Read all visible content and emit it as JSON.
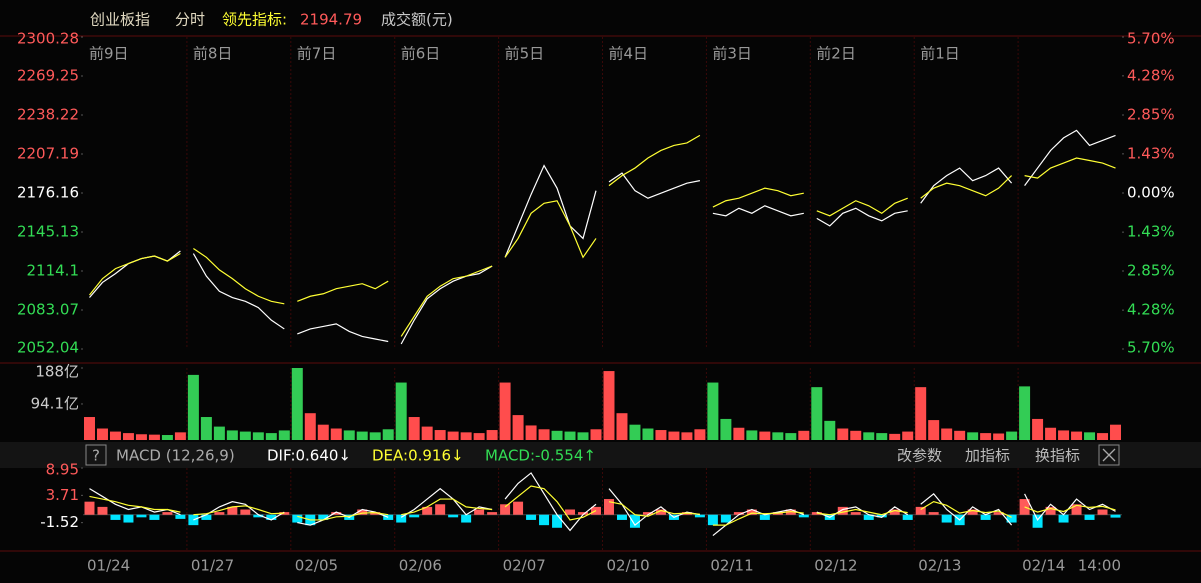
{
  "header": {
    "name": "创业板指",
    "mode": "分时",
    "indicator_label": "领先指标:",
    "indicator_value": 2194.79,
    "volume_label": "成交额(元)"
  },
  "macd_header": {
    "help": "?",
    "name": "MACD (12,26,9)",
    "dif": "DIF:0.640↓",
    "dea": "DEA:0.916↓",
    "macd": "MACD:-0.554↑",
    "buttons": [
      "改参数",
      "加指标",
      "换指标"
    ]
  },
  "chart_data": [
    {
      "type": "line",
      "categories": [
        "前9日",
        "前8日",
        "前7日",
        "前6日",
        "前5日",
        "前4日",
        "前3日",
        "前2日",
        "前1日",
        null
      ],
      "series": [
        {
          "color": "#ffffff",
          "values": [
            [
              2093,
              2105,
              2112,
              2120,
              2124,
              2126,
              2122,
              2130
            ],
            [
              2128,
              2110,
              2098,
              2093,
              2090,
              2085,
              2075,
              2068
            ],
            [
              2064,
              2068,
              2070,
              2072,
              2066,
              2062,
              2060,
              2058
            ],
            [
              2056,
              2075,
              2092,
              2100,
              2106,
              2110,
              2112,
              2118
            ],
            [
              2125,
              2150,
              2175,
              2198,
              2180,
              2150,
              2140,
              2178
            ],
            [
              2185,
              2192,
              2178,
              2172,
              2176,
              2180,
              2184,
              2186
            ],
            [
              2160,
              2158,
              2164,
              2160,
              2166,
              2162,
              2158,
              2160
            ],
            [
              2156,
              2150,
              2160,
              2164,
              2158,
              2154,
              2160,
              2162
            ],
            [
              2168,
              2182,
              2190,
              2196,
              2186,
              2190,
              2196,
              2184
            ],
            [
              2182,
              2196,
              2210,
              2220,
              2226,
              2214,
              2218,
              2222
            ]
          ]
        },
        {
          "color": "#ffff33",
          "values": [
            [
              2095,
              2108,
              2116,
              2120,
              2124,
              2126,
              2122,
              2128
            ],
            [
              2132,
              2125,
              2115,
              2108,
              2100,
              2094,
              2090,
              2088
            ],
            [
              2090,
              2094,
              2096,
              2100,
              2102,
              2104,
              2100,
              2106
            ],
            [
              2062,
              2078,
              2094,
              2102,
              2108,
              2110,
              2114,
              2118
            ],
            [
              2125,
              2140,
              2160,
              2168,
              2170,
              2150,
              2125,
              2140
            ],
            [
              2182,
              2190,
              2196,
              2204,
              2210,
              2214,
              2216,
              2222
            ],
            [
              2165,
              2170,
              2172,
              2176,
              2180,
              2178,
              2174,
              2176
            ],
            [
              2162,
              2158,
              2164,
              2170,
              2166,
              2160,
              2168,
              2172
            ],
            [
              2172,
              2180,
              2184,
              2182,
              2178,
              2174,
              2180,
              2190
            ],
            [
              2190,
              2188,
              2196,
              2200,
              2204,
              2202,
              2200,
              2196
            ]
          ]
        }
      ],
      "ylim": [
        2052.04,
        2300.28
      ],
      "yticks": [
        2300.28,
        2269.25,
        2238.22,
        2207.19,
        2176.16,
        2145.13,
        2114.1,
        2083.07,
        2052.04
      ],
      "y2lim": [
        -5.7,
        5.7
      ],
      "y2ticks": [
        {
          "value": 5.7,
          "label": "5.70%"
        },
        {
          "value": 4.28,
          "label": "4.28%"
        },
        {
          "value": 2.85,
          "label": "2.85%"
        },
        {
          "value": 1.43,
          "label": "1.43%"
        },
        {
          "value": 0,
          "label": "0.00%"
        },
        {
          "value": -1.43,
          "label": "1.43%"
        },
        {
          "value": -2.85,
          "label": "2.85%"
        },
        {
          "value": -4.28,
          "label": "4.28%"
        },
        {
          "value": -5.7,
          "label": "5.70%"
        }
      ]
    },
    {
      "type": "bar",
      "up_color": "#ff4d4d",
      "down_color": "#33cc55",
      "values": [
        [
          60,
          30,
          22,
          18,
          15,
          14,
          13,
          20
        ],
        [
          170,
          60,
          35,
          25,
          22,
          20,
          18,
          25
        ],
        [
          188,
          70,
          40,
          30,
          25,
          22,
          20,
          28
        ],
        [
          150,
          60,
          35,
          26,
          22,
          20,
          18,
          26
        ],
        [
          150,
          65,
          38,
          28,
          24,
          22,
          20,
          28
        ],
        [
          180,
          70,
          40,
          30,
          26,
          22,
          20,
          28
        ],
        [
          150,
          55,
          32,
          25,
          22,
          20,
          18,
          24
        ],
        [
          138,
          50,
          30,
          24,
          20,
          18,
          16,
          22
        ],
        [
          138,
          52,
          30,
          24,
          20,
          18,
          17,
          22
        ],
        [
          140,
          55,
          32,
          25,
          22,
          20,
          18,
          40
        ]
      ],
      "ylim": [
        0,
        188
      ],
      "yticks": [
        {
          "value": 188,
          "label": "188亿"
        },
        {
          "value": 94.1,
          "label": "94.1亿"
        }
      ]
    },
    {
      "type": "macd",
      "categories": [
        "01/24",
        "01/27",
        "02/05",
        "02/06",
        "02/07",
        "02/10",
        "02/11",
        "02/12",
        "02/13",
        "02/14"
      ],
      "end_label": "14:00",
      "up_color": "#ff5a5a",
      "down_color": "#00e5ff",
      "histogram": [
        [
          2.5,
          1.5,
          -1,
          -1.5,
          -0.5,
          -1,
          0.5,
          -0.8
        ],
        [
          -2,
          -1,
          0.5,
          1.5,
          1,
          -0.5,
          -1,
          0.5
        ],
        [
          -1.5,
          -2,
          -1,
          0.5,
          -1,
          1,
          0.5,
          -1
        ],
        [
          -1.5,
          -0.5,
          1.5,
          2,
          -0.5,
          -1.5,
          1,
          0.5
        ],
        [
          2,
          2.5,
          -1,
          -2,
          -2.5,
          1,
          0.5,
          1.5
        ],
        [
          3,
          -1,
          -2.5,
          0.5,
          1,
          -1,
          0.5,
          -0.5
        ],
        [
          -2,
          -1.5,
          0.5,
          1,
          -1,
          0.5,
          1,
          -0.5
        ],
        [
          0.5,
          -1,
          1.5,
          0.5,
          -1,
          -0.5,
          1,
          -1
        ],
        [
          1.5,
          0.5,
          -1.5,
          -2,
          1,
          -1,
          0.5,
          -1.5
        ],
        [
          3,
          -2.5,
          1.5,
          -1.5,
          2,
          -1,
          1,
          -0.554
        ]
      ],
      "series": [
        {
          "color": "#ffffff",
          "values": [
            [
              5,
              3.5,
              2,
              1,
              1.5,
              0.5,
              1,
              0
            ],
            [
              -1,
              0,
              1.5,
              2.5,
              2,
              0,
              -1,
              0.5
            ],
            [
              -1.5,
              -2,
              -1,
              0.5,
              -0.5,
              1,
              0.5,
              -0.5
            ],
            [
              -0.5,
              1,
              3,
              5,
              3,
              0,
              1.5,
              1
            ],
            [
              3,
              6,
              8,
              4,
              0,
              -3,
              0,
              2
            ],
            [
              5,
              2,
              -2,
              0,
              1.5,
              -0.5,
              0.5,
              0
            ],
            [
              -4,
              -2,
              0,
              1,
              0,
              0.5,
              1,
              0
            ],
            [
              0.5,
              -0.5,
              1,
              1.5,
              0,
              -0.5,
              1.5,
              0
            ],
            [
              2,
              4,
              1,
              -1,
              1.5,
              0,
              1,
              -2
            ],
            [
              4,
              -1,
              2,
              0,
              3,
              1,
              2,
              0.64
            ]
          ]
        },
        {
          "color": "#ffff33",
          "values": [
            [
              3.5,
              3,
              2.5,
              1.8,
              1.5,
              1,
              1,
              0.5
            ],
            [
              0,
              0.2,
              0.8,
              1.5,
              1.7,
              1,
              0.2,
              0.3
            ],
            [
              -0.3,
              -1,
              -1,
              -0.4,
              -0.3,
              0.3,
              0.4,
              0
            ],
            [
              0,
              0.5,
              1.5,
              3,
              3,
              1.5,
              1.2,
              1
            ],
            [
              1.5,
              3.5,
              5.5,
              5,
              2.5,
              -1,
              -0.5,
              0.8
            ],
            [
              2.5,
              2,
              0,
              -0.3,
              0.8,
              0.2,
              0.3,
              0.1
            ],
            [
              -2,
              -2,
              -0.8,
              0.3,
              0.2,
              0.3,
              0.6,
              0.3
            ],
            [
              0.3,
              0,
              0.5,
              1,
              0.5,
              0,
              0.8,
              0.4
            ],
            [
              1,
              2.5,
              1.8,
              0.3,
              0.8,
              0.4,
              0.7,
              -0.5
            ],
            [
              1.5,
              0.5,
              1.2,
              0.6,
              1.8,
              1.4,
              1.6,
              0.916
            ]
          ]
        }
      ],
      "ylim": [
        -6.76,
        8.95
      ],
      "yticks": [
        8.95,
        3.71,
        -1.52
      ]
    }
  ]
}
